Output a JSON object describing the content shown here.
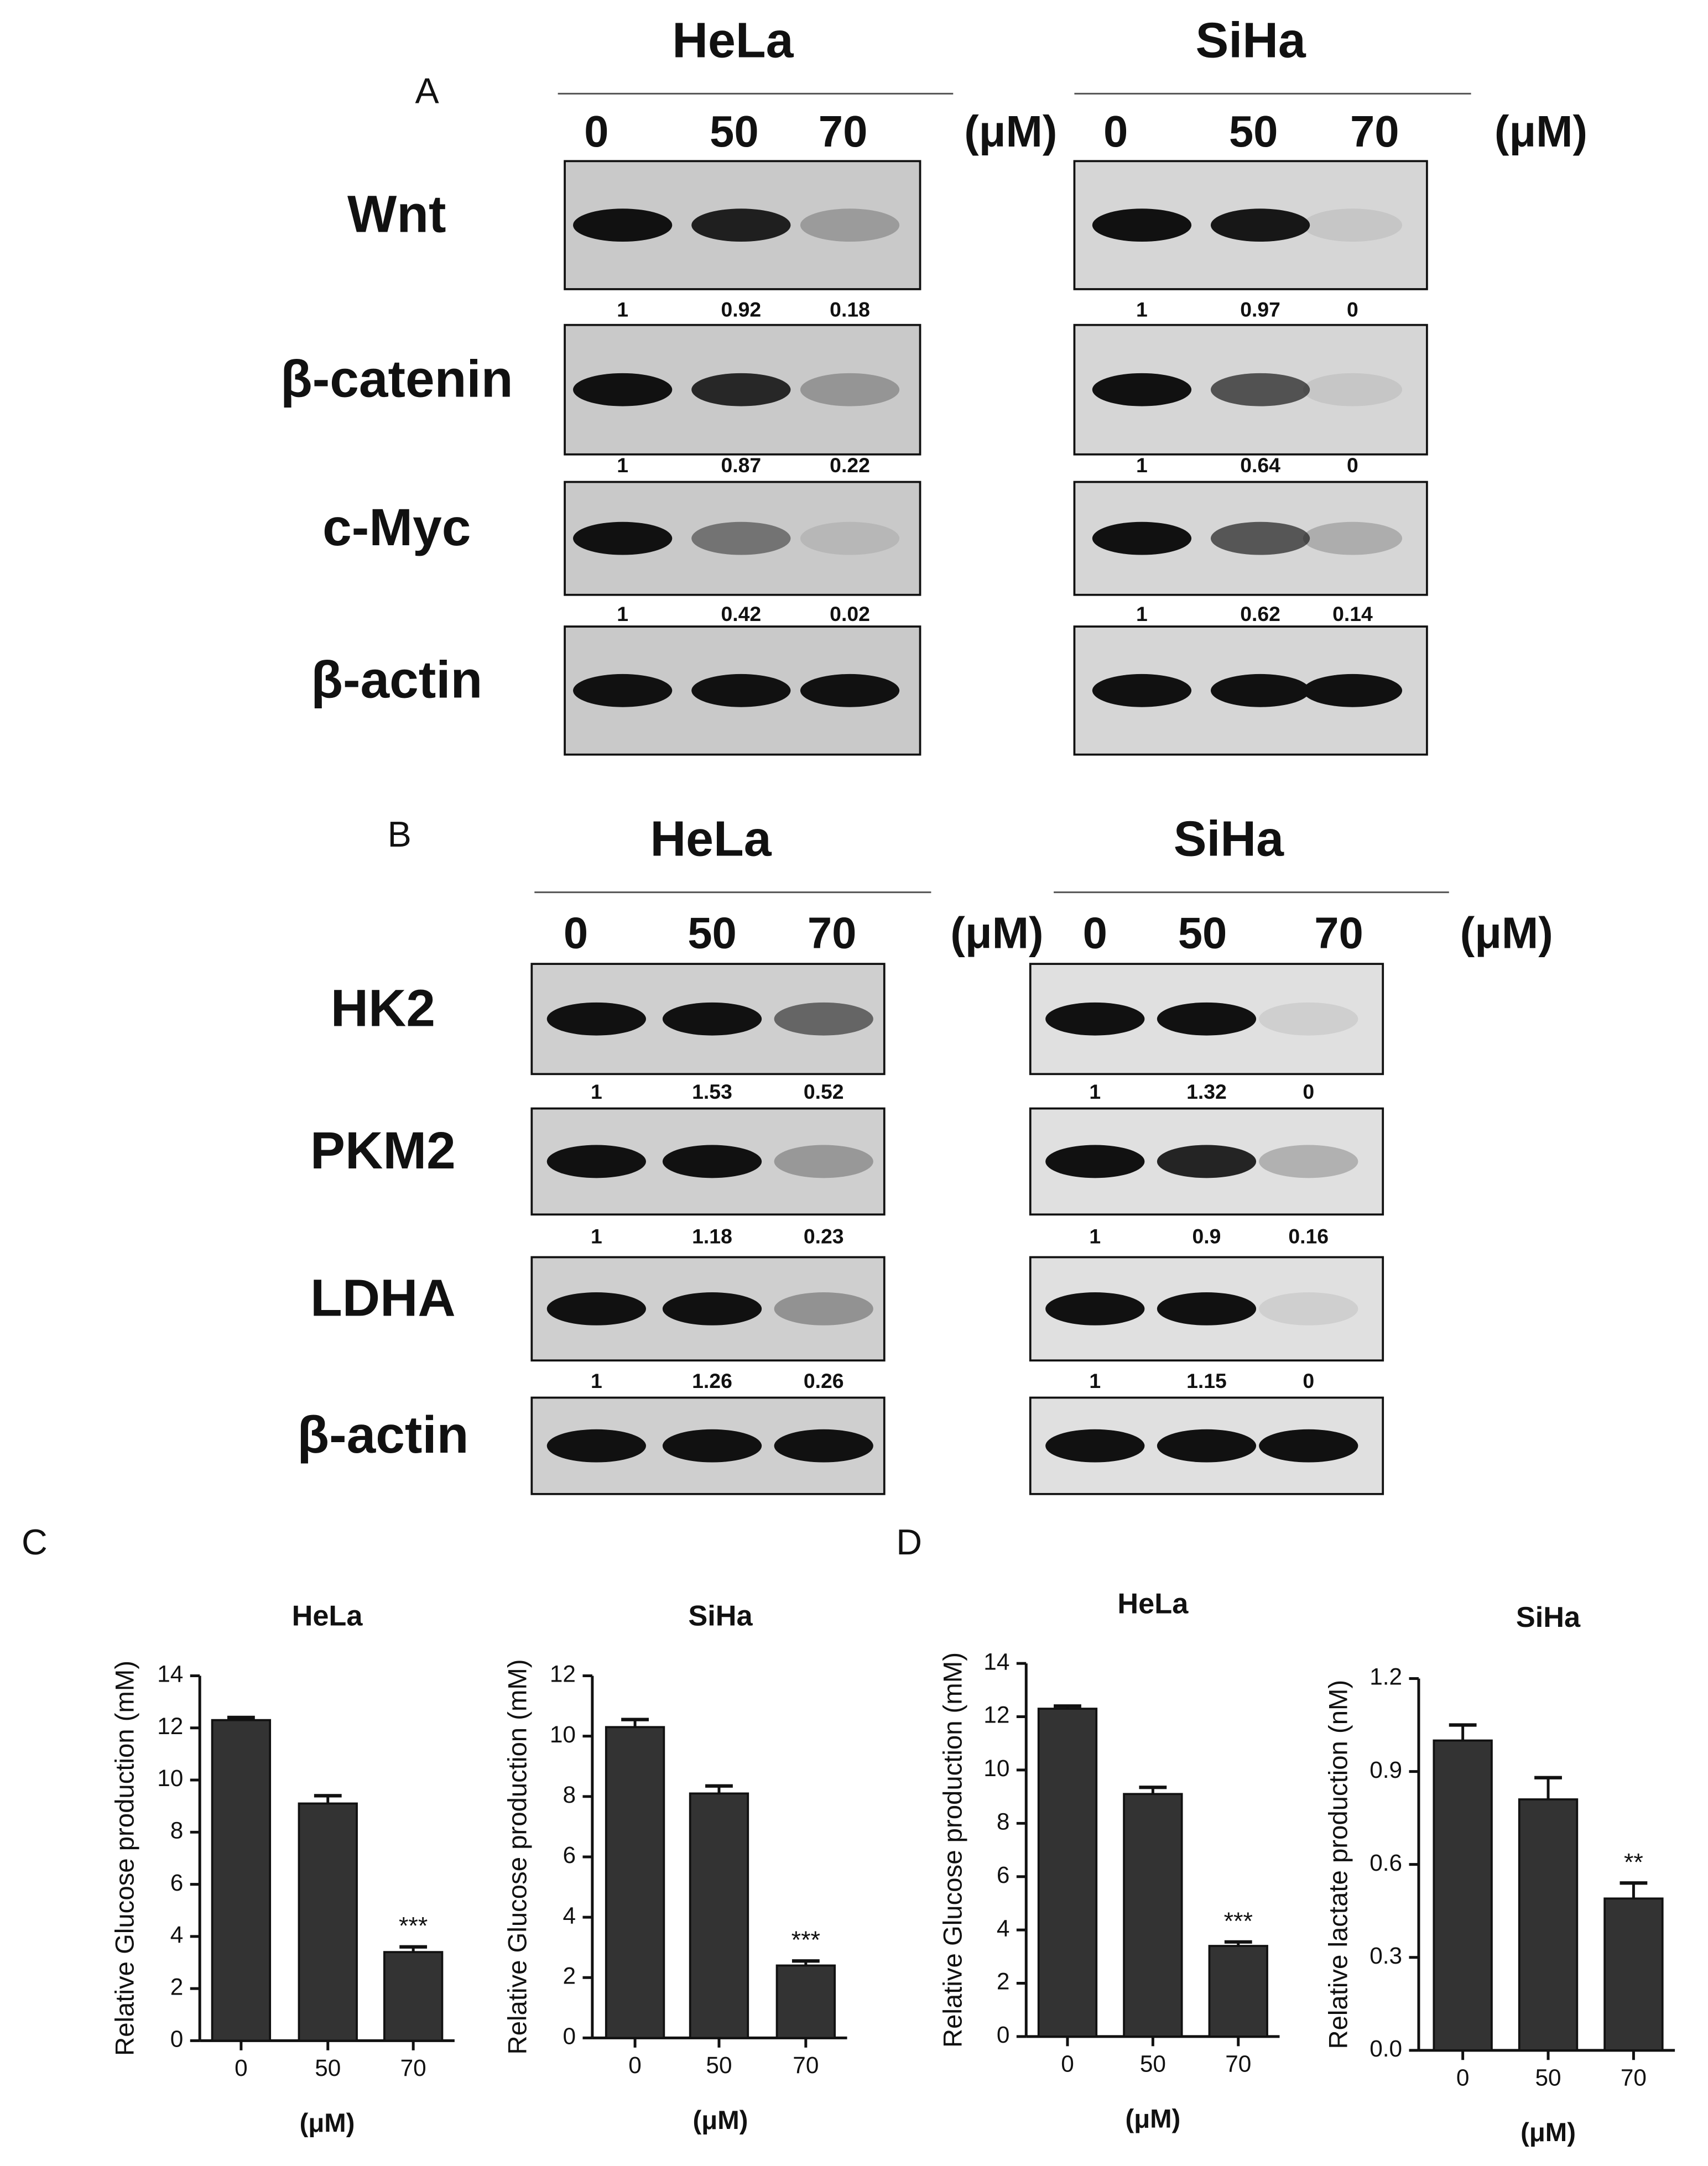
{
  "panel_labels": [
    "A",
    "B",
    "C",
    "D"
  ],
  "blots": [
    {
      "sections": [
        {
          "cell_line": "HeLa",
          "doses": [
            0,
            50,
            70
          ],
          "unit": "(μM)",
          "rows": [
            {
              "protein": "Wnt",
              "quant": [
                1,
                0.92,
                0.18
              ]
            },
            {
              "protein": "β-catenin",
              "quant": [
                1,
                0.87,
                0.22
              ]
            },
            {
              "protein": "c-Myc",
              "quant": [
                1,
                0.42,
                0.02
              ]
            },
            {
              "protein": "β-actin"
            }
          ]
        },
        {
          "cell_line": "SiHa",
          "doses": [
            0,
            50,
            70
          ],
          "unit": "(μM)",
          "rows": [
            {
              "protein": "Wnt",
              "quant": [
                1,
                0.97,
                0
              ]
            },
            {
              "protein": "β-catenin",
              "quant": [
                1,
                0.64,
                0
              ]
            },
            {
              "protein": "c-Myc",
              "quant": [
                1,
                0.62,
                0.14
              ]
            },
            {
              "protein": "β-actin"
            }
          ]
        }
      ]
    },
    {
      "sections": [
        {
          "cell_line": "HeLa",
          "doses": [
            0,
            50,
            70
          ],
          "unit": "(μM)",
          "rows": [
            {
              "protein": "HK2",
              "quant": [
                1,
                1.53,
                0.52
              ]
            },
            {
              "protein": "PKM2",
              "quant": [
                1,
                1.18,
                0.23
              ]
            },
            {
              "protein": "LDHA",
              "quant": [
                1,
                1.26,
                0.26
              ]
            },
            {
              "protein": "β-actin"
            }
          ]
        },
        {
          "cell_line": "SiHa",
          "doses": [
            0,
            50,
            70
          ],
          "unit": "(μM)",
          "rows": [
            {
              "protein": "HK2",
              "quant": [
                1,
                1.32,
                0
              ]
            },
            {
              "protein": "PKM2",
              "quant": [
                1,
                0.9,
                0.16
              ]
            },
            {
              "protein": "LDHA",
              "quant": [
                1,
                1.15,
                0
              ]
            },
            {
              "protein": "β-actin"
            }
          ]
        }
      ]
    }
  ],
  "chart_data": [
    {
      "type": "bar",
      "title": "HeLa",
      "y_label": "Relative Glucose production (mM)",
      "x_label": "(μM)",
      "categories": [
        "0",
        "50",
        "70"
      ],
      "values": [
        12.3,
        9.1,
        3.4
      ],
      "errors": [
        0.1,
        0.3,
        0.2
      ],
      "color": "#333333",
      "ylim": [
        0,
        14
      ],
      "yticks": [
        0,
        2,
        4,
        6,
        8,
        10,
        12,
        14
      ],
      "annotations": [
        {
          "x": "70",
          "text": "***"
        }
      ]
    },
    {
      "type": "bar",
      "title": "SiHa",
      "y_label": "Relative Glucose production (mM)",
      "x_label": "(μM)",
      "categories": [
        "0",
        "50",
        "70"
      ],
      "values": [
        10.3,
        8.1,
        2.4
      ],
      "errors": [
        0.25,
        0.25,
        0.15
      ],
      "color": "#333333",
      "ylim": [
        0,
        12
      ],
      "yticks": [
        0,
        2,
        4,
        6,
        8,
        10,
        12
      ],
      "annotations": [
        {
          "x": "70",
          "text": "***"
        }
      ]
    },
    {
      "type": "bar",
      "title": "HeLa",
      "y_label": "Relative Glucose production (mM)",
      "x_label": "(μM)",
      "categories": [
        "0",
        "50",
        "70"
      ],
      "values": [
        12.3,
        9.1,
        3.4
      ],
      "errors": [
        0.1,
        0.25,
        0.15
      ],
      "color": "#333333",
      "ylim": [
        0,
        14
      ],
      "yticks": [
        0,
        2,
        4,
        6,
        8,
        10,
        12,
        14
      ],
      "annotations": [
        {
          "x": "70",
          "text": "***"
        }
      ]
    },
    {
      "type": "bar",
      "title": "SiHa",
      "y_label": "Relative lactate production (nM)",
      "x_label": "(μM)",
      "categories": [
        "0",
        "50",
        "70"
      ],
      "values": [
        1.0,
        0.81,
        0.49
      ],
      "errors": [
        0.05,
        0.07,
        0.05
      ],
      "color": "#333333",
      "ylim": [
        0,
        1.2
      ],
      "yticks": [
        {
          "value": 0,
          "label": "0.0"
        },
        0.3,
        0.6,
        0.9,
        1.2
      ],
      "annotations": [
        {
          "x": "70",
          "text": "**"
        }
      ]
    }
  ]
}
